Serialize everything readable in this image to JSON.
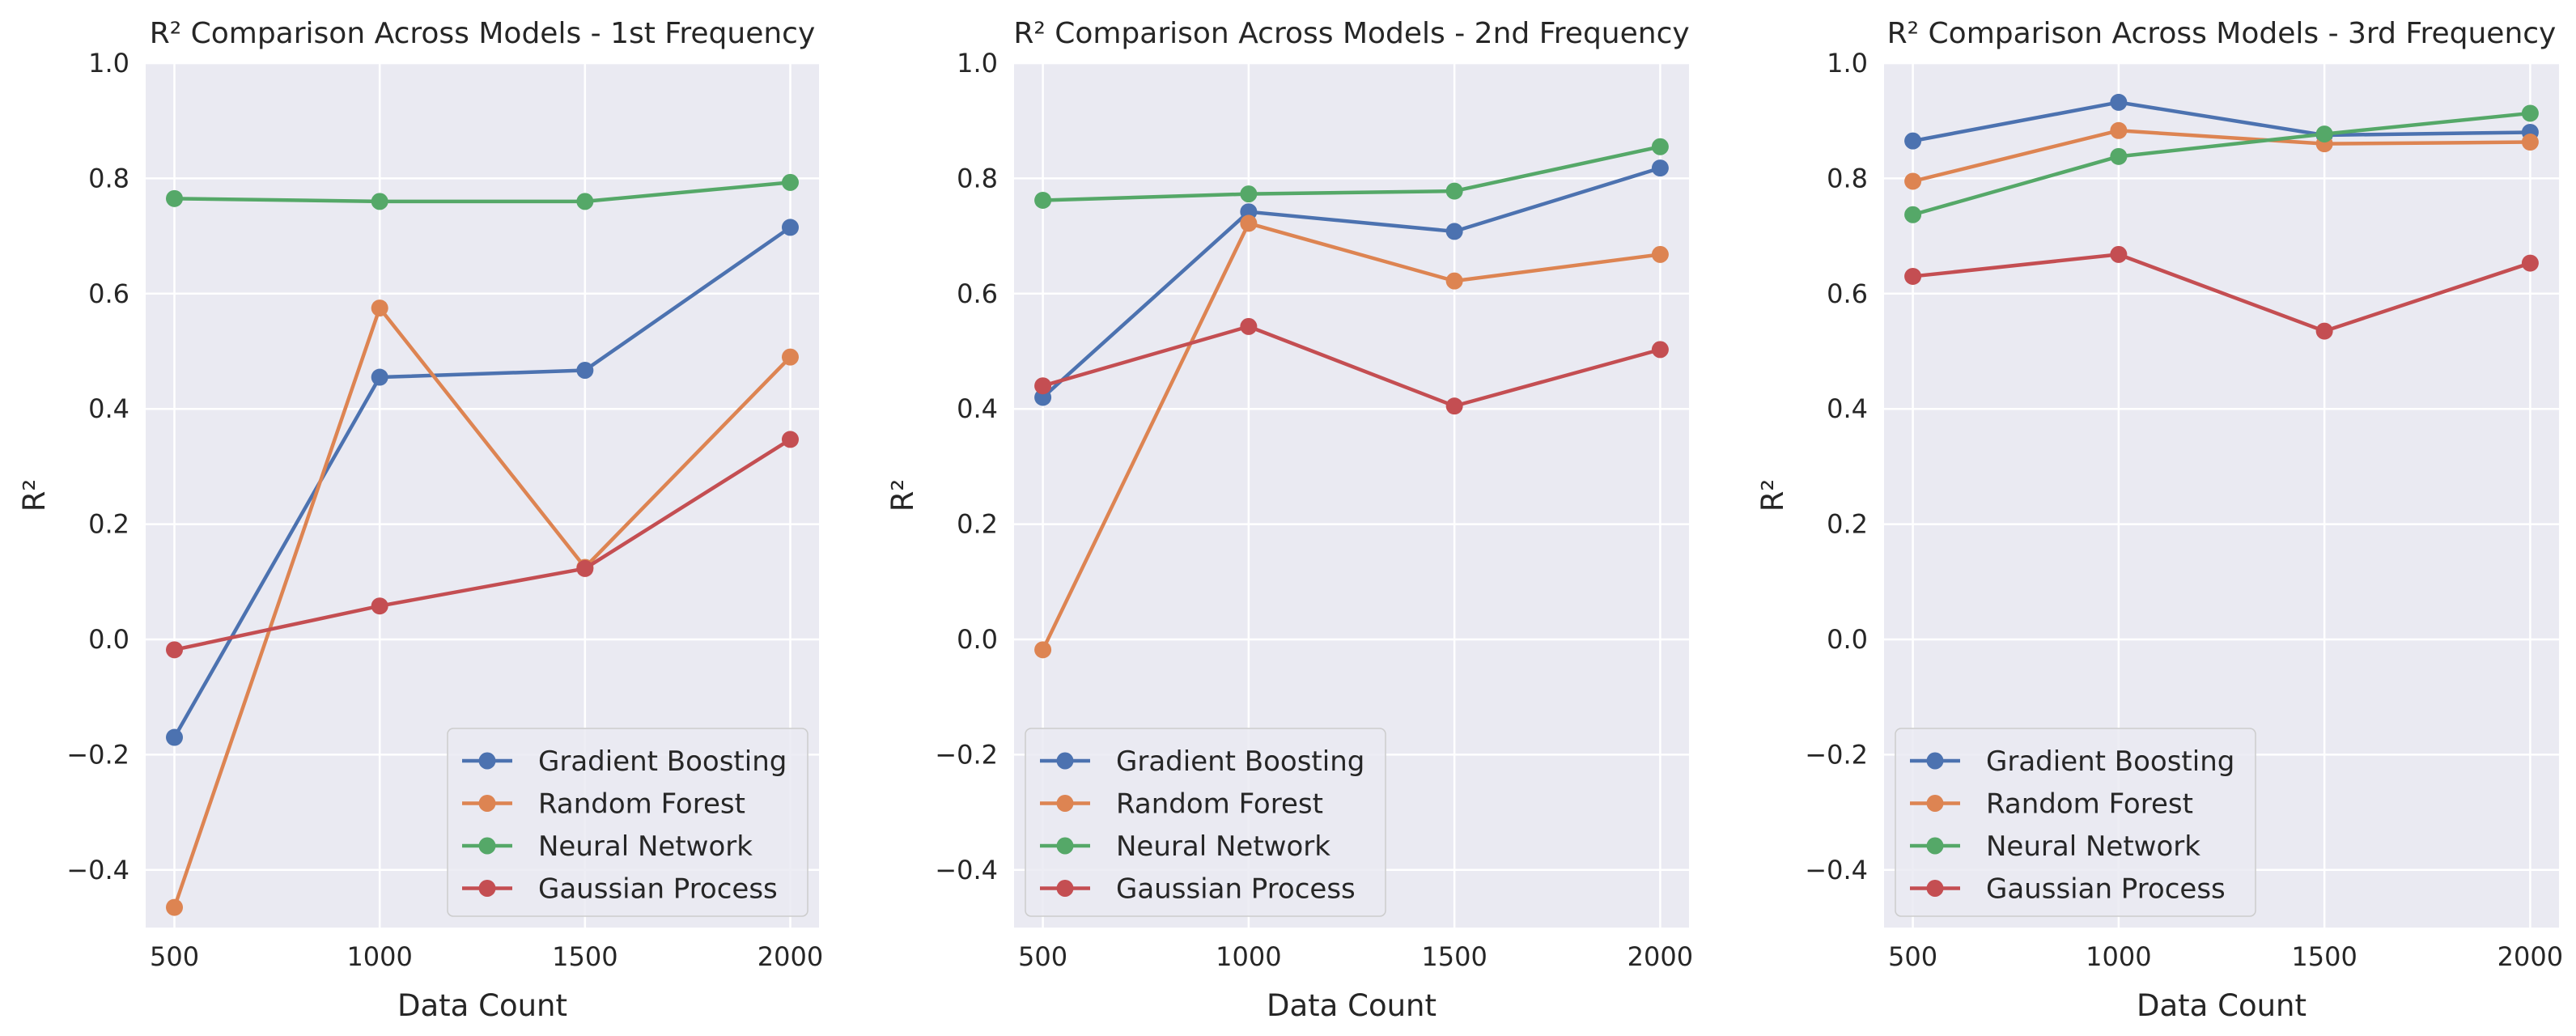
{
  "colors": {
    "background": "#eaeaf2",
    "grid": "#ffffff",
    "gradient_boosting": "#4c72b0",
    "random_forest": "#dd8452",
    "neural_network": "#55a868",
    "gaussian_process": "#c44e52"
  },
  "chart_data": [
    {
      "type": "line",
      "title": "R² Comparison Across Models - 1st Frequency",
      "xlabel": "Data Count",
      "ylabel": "R²",
      "x": [
        500,
        1000,
        1500,
        2000
      ],
      "xticks": [
        500,
        1000,
        1500,
        2000
      ],
      "xlim": [
        430,
        2070
      ],
      "yticks": [
        -0.4,
        -0.2,
        0.0,
        0.2,
        0.4,
        0.6,
        0.8,
        1.0
      ],
      "ylim": [
        -0.5,
        1.0
      ],
      "legend_position": "lower-right",
      "series": [
        {
          "name": "Gradient Boosting",
          "color": "#4c72b0",
          "values": [
            -0.17,
            0.455,
            0.467,
            0.715
          ]
        },
        {
          "name": "Random Forest",
          "color": "#dd8452",
          "values": [
            -0.465,
            0.575,
            0.125,
            0.49
          ]
        },
        {
          "name": "Neural Network",
          "color": "#55a868",
          "values": [
            0.765,
            0.76,
            0.76,
            0.793
          ]
        },
        {
          "name": "Gaussian Process",
          "color": "#c44e52",
          "values": [
            -0.018,
            0.058,
            0.123,
            0.347
          ]
        }
      ]
    },
    {
      "type": "line",
      "title": "R² Comparison Across Models - 2nd Frequency",
      "xlabel": "Data Count",
      "ylabel": "R²",
      "x": [
        500,
        1000,
        1500,
        2000
      ],
      "xticks": [
        500,
        1000,
        1500,
        2000
      ],
      "xlim": [
        430,
        2070
      ],
      "yticks": [
        -0.4,
        -0.2,
        0.0,
        0.2,
        0.4,
        0.6,
        0.8,
        1.0
      ],
      "ylim": [
        -0.5,
        1.0
      ],
      "legend_position": "lower-left",
      "series": [
        {
          "name": "Gradient Boosting",
          "color": "#4c72b0",
          "values": [
            0.42,
            0.742,
            0.708,
            0.818
          ]
        },
        {
          "name": "Random Forest",
          "color": "#dd8452",
          "values": [
            -0.018,
            0.722,
            0.622,
            0.668
          ]
        },
        {
          "name": "Neural Network",
          "color": "#55a868",
          "values": [
            0.762,
            0.773,
            0.778,
            0.855
          ]
        },
        {
          "name": "Gaussian Process",
          "color": "#c44e52",
          "values": [
            0.44,
            0.543,
            0.405,
            0.503
          ]
        }
      ]
    },
    {
      "type": "line",
      "title": "R² Comparison Across Models - 3rd Frequency",
      "xlabel": "Data Count",
      "ylabel": "R²",
      "x": [
        500,
        1000,
        1500,
        2000
      ],
      "xticks": [
        500,
        1000,
        1500,
        2000
      ],
      "xlim": [
        430,
        2070
      ],
      "yticks": [
        -0.4,
        -0.2,
        0.0,
        0.2,
        0.4,
        0.6,
        0.8,
        1.0
      ],
      "ylim": [
        -0.5,
        1.0
      ],
      "legend_position": "lower-left",
      "series": [
        {
          "name": "Gradient Boosting",
          "color": "#4c72b0",
          "values": [
            0.865,
            0.932,
            0.875,
            0.88
          ]
        },
        {
          "name": "Random Forest",
          "color": "#dd8452",
          "values": [
            0.795,
            0.883,
            0.86,
            0.863
          ]
        },
        {
          "name": "Neural Network",
          "color": "#55a868",
          "values": [
            0.737,
            0.838,
            0.877,
            0.913
          ]
        },
        {
          "name": "Gaussian Process",
          "color": "#c44e52",
          "values": [
            0.63,
            0.668,
            0.535,
            0.653
          ]
        }
      ]
    }
  ]
}
